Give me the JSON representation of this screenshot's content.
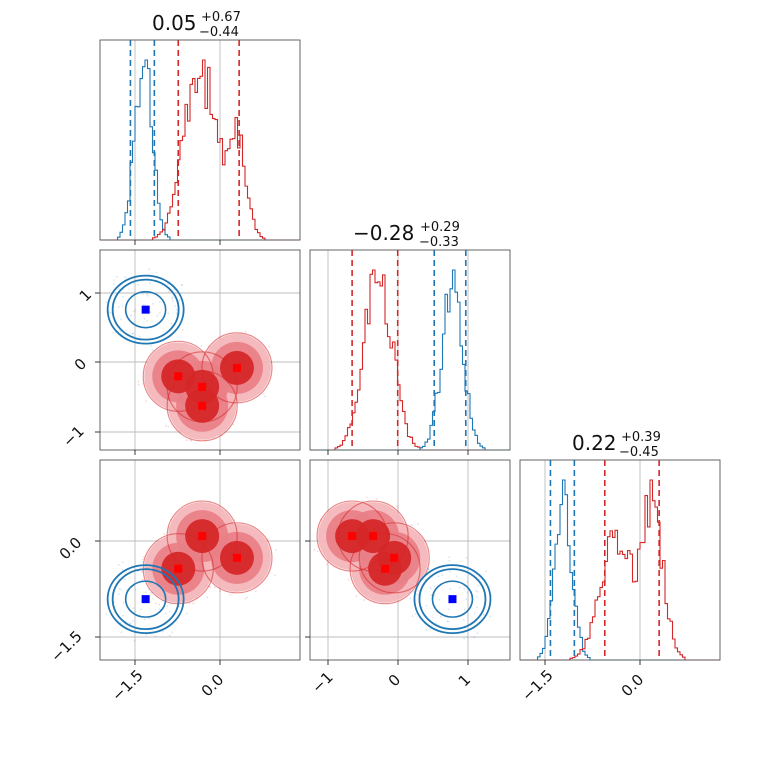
{
  "chart_data": {
    "type": "corner",
    "colors": {
      "posterior_a": "#d62728",
      "posterior_b": "#1f77b4",
      "marker_a": "#ff0000",
      "marker_b": "#0000ff"
    },
    "parameters": [
      {
        "title_value": "0.05",
        "title_plus": "+0.67",
        "title_minus": "−0.44",
        "range": [
          -2.3,
          2.3
        ]
      },
      {
        "title_value": "−0.28",
        "title_plus": "+0.29",
        "title_minus": "−0.33",
        "range": [
          -1.25,
          1.6
        ]
      },
      {
        "title_value": "0.22",
        "title_plus": "+0.39",
        "title_minus": "−0.45",
        "range": [
          -2.3,
          2.3
        ]
      }
    ],
    "ticks": {
      "p1": {
        "values": [
          -1.5,
          0.0
        ],
        "labels": [
          "−1.5",
          "0.0"
        ]
      },
      "p2": {
        "values": [
          -1,
          0,
          1
        ],
        "labels": [
          "−1",
          "0",
          "1"
        ]
      },
      "p3": {
        "values": [
          -1.5,
          0.0
        ],
        "labels": [
          "−1.5",
          "0.0"
        ]
      }
    },
    "histograms": [
      {
        "panel": "p1",
        "series": [
          {
            "name": "",
            "color": "#1f77b4",
            "quantiles": [
              -1.6,
              -1.05
            ],
            "centers": [
              -1.3
            ],
            "widths": [
              0.2
            ],
            "weights": [
              1
            ]
          },
          {
            "name": "",
            "color": "#d62728",
            "quantiles": [
              -0.5,
              0.9
            ],
            "centers": [
              -0.02,
              0.85
            ],
            "widths": [
              0.35,
              0.22
            ],
            "weights": [
              1,
              0.55
            ]
          }
        ]
      },
      {
        "panel": "p2",
        "series": [
          {
            "name": "",
            "color": "#d62728",
            "quantiles": [
              -0.65,
              0.0
            ],
            "centers": [
              -0.28
            ],
            "widths": [
              0.2
            ],
            "weights": [
              1
            ]
          },
          {
            "name": "",
            "color": "#1f77b4",
            "quantiles": [
              0.52,
              0.97
            ],
            "centers": [
              0.78
            ],
            "widths": [
              0.15
            ],
            "weights": [
              1
            ]
          }
        ]
      },
      {
        "panel": "p3",
        "series": [
          {
            "name": "",
            "color": "#1f77b4",
            "quantiles": [
              -1.6,
              -1.05
            ],
            "centers": [
              -1.3
            ],
            "widths": [
              0.2
            ],
            "weights": [
              1
            ]
          },
          {
            "name": "",
            "color": "#d62728",
            "quantiles": [
              -0.35,
              0.9
            ],
            "centers": [
              -0.1,
              0.75
            ],
            "widths": [
              0.35,
              0.25
            ],
            "weights": [
              0.8,
              1
            ]
          }
        ]
      }
    ],
    "scatter_panels": [
      {
        "panel": "p1_vs_p2",
        "red_points": [
          [
            -0.5,
            -0.2
          ],
          [
            0.05,
            -0.35
          ],
          [
            0.05,
            -0.62
          ],
          [
            0.85,
            -0.08
          ]
        ],
        "blue_points": [
          [
            -1.25,
            0.75
          ]
        ]
      },
      {
        "panel": "p1_vs_p3",
        "red_points": [
          [
            -0.5,
            -0.2
          ],
          [
            0.05,
            0.55
          ],
          [
            0.85,
            0.05
          ]
        ],
        "blue_points": [
          [
            -1.25,
            -0.9
          ]
        ]
      },
      {
        "panel": "p2_vs_p3",
        "red_points": [
          [
            -0.65,
            0.55
          ],
          [
            -0.35,
            0.55
          ],
          [
            -0.05,
            0.05
          ],
          [
            -0.18,
            -0.2
          ]
        ],
        "blue_points": [
          [
            0.78,
            -0.9
          ]
        ]
      }
    ]
  }
}
